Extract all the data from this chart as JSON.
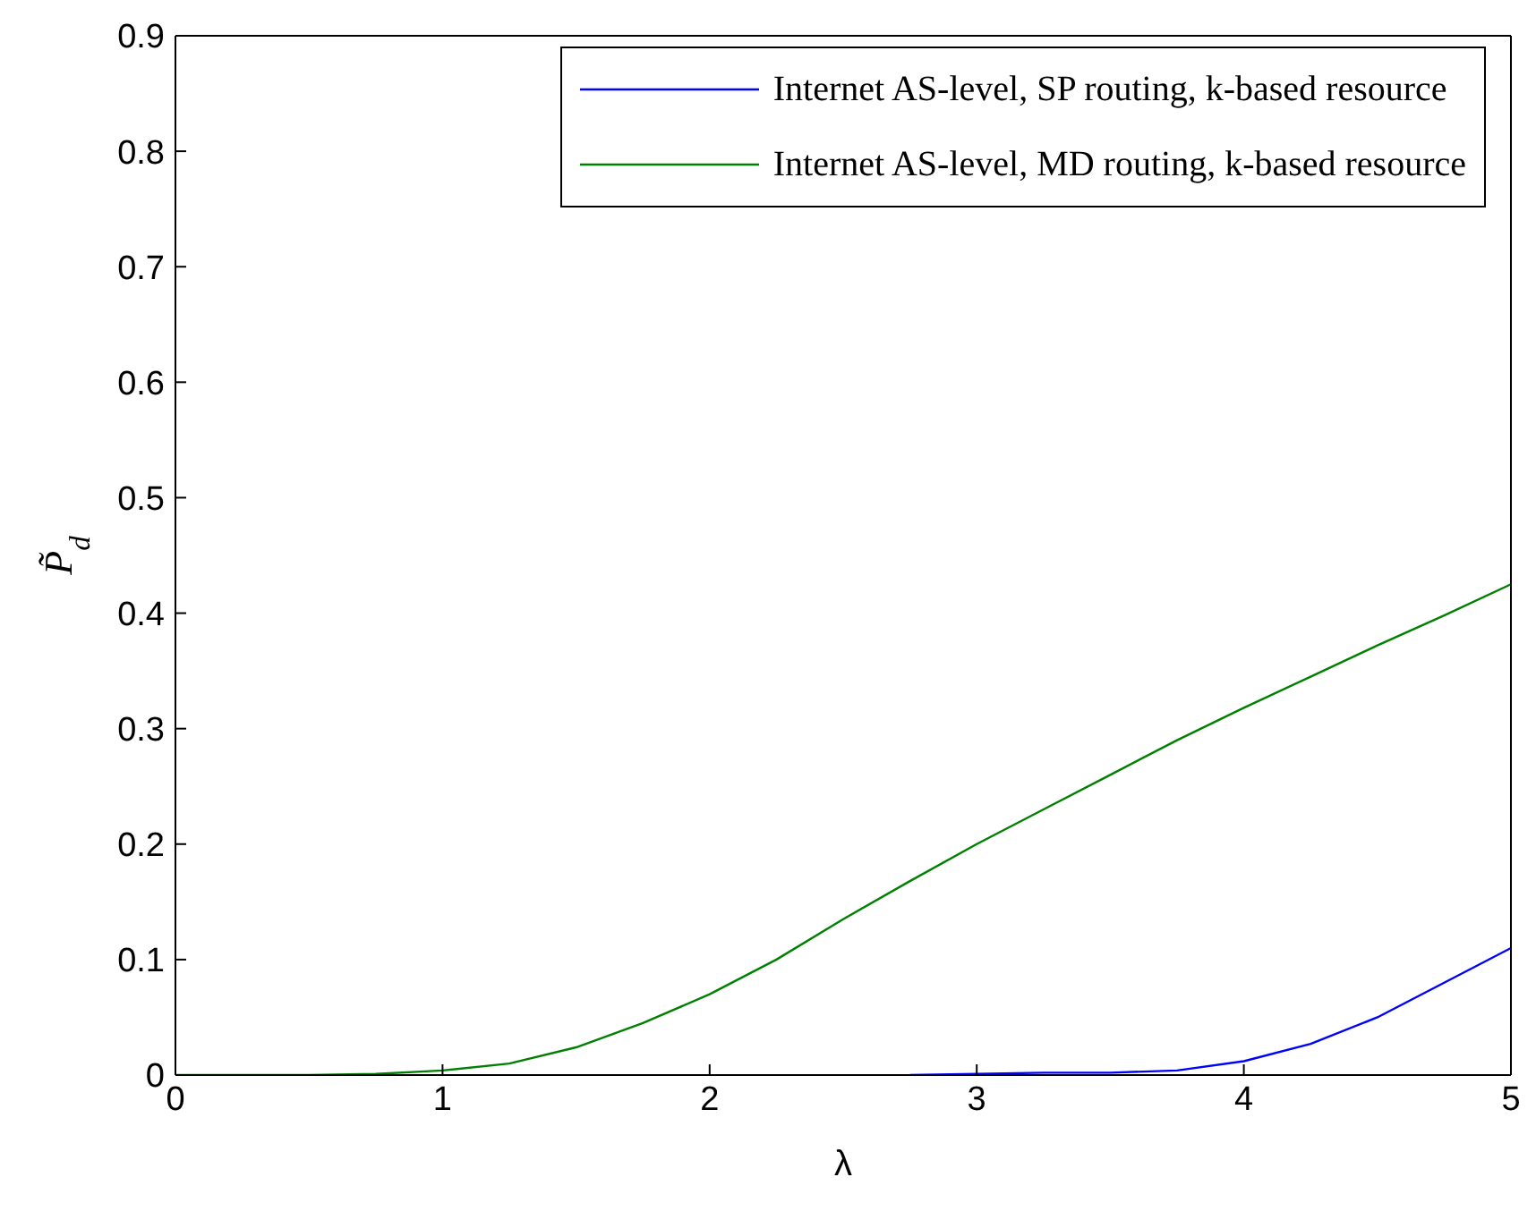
{
  "chart_data": {
    "type": "line",
    "xlabel": "λ",
    "ylabel": "P̃$_{d}$",
    "x": [
      0,
      0.25,
      0.5,
      0.75,
      1,
      1.25,
      1.5,
      1.75,
      2,
      2.25,
      2.5,
      2.75,
      3,
      3.25,
      3.5,
      3.75,
      4,
      4.25,
      4.5,
      4.75,
      5
    ],
    "series": [
      {
        "name": "Internet AS-level, SP routing, k-based resource",
        "color": "#0000ff",
        "values": [
          null,
          null,
          null,
          null,
          null,
          null,
          null,
          null,
          null,
          null,
          null,
          0,
          0.001,
          0.002,
          0.002,
          0.004,
          0.012,
          0.027,
          0.05,
          0.08,
          0.11
        ]
      },
      {
        "name": "Internet AS-level, MD routing, k-based resource",
        "color": "#008000",
        "values": [
          0,
          0,
          0,
          0.001,
          0.004,
          0.01,
          0.024,
          0.045,
          0.07,
          0.1,
          0.135,
          0.168,
          0.2,
          0.23,
          0.26,
          0.29,
          0.318,
          0.345,
          0.372,
          0.398,
          0.425
        ]
      }
    ],
    "xlim": [
      0,
      5
    ],
    "xticks": [
      0,
      1,
      2,
      3,
      4,
      5
    ],
    "ylim": [
      0,
      0.9
    ],
    "yticks": [
      0,
      0.1,
      0.2,
      0.3,
      0.4,
      0.5,
      0.6,
      0.7,
      0.8,
      0.9
    ],
    "grid": false,
    "legend": "top right",
    "marker": "none",
    "line_style": "solid"
  }
}
